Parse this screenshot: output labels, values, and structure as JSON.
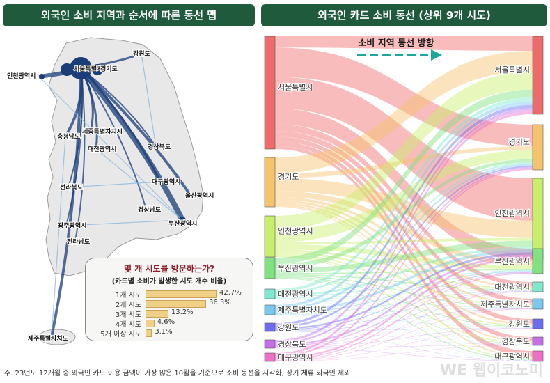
{
  "titles": {
    "left": "외국인 소비 지역과 순서에 따른 동선 맵",
    "right": "외국인 카드 소비 동선 (상위 9개 시도)"
  },
  "map": {
    "regions": [
      {
        "name": "강원도"
      },
      {
        "name": "인천광역시"
      },
      {
        "name": "서울특별시"
      },
      {
        "name": "경기도"
      },
      {
        "name": "세종특별자치시"
      },
      {
        "name": "충청남도"
      },
      {
        "name": "대전광역시"
      },
      {
        "name": "경상북도"
      },
      {
        "name": "전라북도"
      },
      {
        "name": "대구광역시"
      },
      {
        "name": "울산광역시"
      },
      {
        "name": "경상남도"
      },
      {
        "name": "부산광역시"
      },
      {
        "name": "광주광역시"
      },
      {
        "name": "전라남도"
      },
      {
        "name": "제주특별자치도"
      }
    ]
  },
  "inset": {
    "question": "몇 개 시도를 방문하는가?",
    "subtitle": "(카드별 소비가 발생한 시도 개수 비율)",
    "rows": [
      {
        "label": "1개 시도",
        "value": 42.7,
        "text": "42.7%"
      },
      {
        "label": "2개 시도",
        "value": 36.3,
        "text": "36.3%"
      },
      {
        "label": "3개 시도",
        "value": 13.2,
        "text": "13.2%"
      },
      {
        "label": "4개 시도",
        "value": 4.6,
        "text": "4.6%"
      },
      {
        "label": "5개 이상 시도",
        "value": 3.1,
        "text": "3.1%"
      }
    ]
  },
  "chart_data": {
    "type": "sankey",
    "title": "외국인 카드 소비 동선 (상위 9개 시도)",
    "annotation": "소비 지역 동선 방향",
    "nodes_left": [
      {
        "name": "서울특별시",
        "color": "#ef6b6b"
      },
      {
        "name": "경기도",
        "color": "#f6c36d"
      },
      {
        "name": "인천광역시",
        "color": "#c8ef6a"
      },
      {
        "name": "부산광역시",
        "color": "#7ee37e"
      },
      {
        "name": "대전광역시",
        "color": "#7de9cf"
      },
      {
        "name": "제주특별자치도",
        "color": "#78c8f0"
      },
      {
        "name": "강원도",
        "color": "#6b6cf0"
      },
      {
        "name": "경상북도",
        "color": "#c66fe8"
      },
      {
        "name": "대구광역시",
        "color": "#ee6fc6"
      }
    ],
    "nodes_right": [
      {
        "name": "서울특별시",
        "color": "#ef6b6b"
      },
      {
        "name": "경기도",
        "color": "#f6c36d"
      },
      {
        "name": "인천광역시",
        "color": "#c8ef6a"
      },
      {
        "name": "부산광역시",
        "color": "#7ee37e"
      },
      {
        "name": "대전광역시",
        "color": "#7de9cf"
      },
      {
        "name": "제주특별자치도",
        "color": "#78c8f0"
      },
      {
        "name": "강원도",
        "color": "#6b6cf0"
      },
      {
        "name": "경상북도",
        "color": "#c66fe8"
      },
      {
        "name": "대구광역시",
        "color": "#ee6fc6"
      }
    ]
  },
  "footnote": "주. 23년도 12개월 중 외국인 카드 이용 금액이 가장 많은 10월을 기준으로 소비 동선을 시각화, 장기 체류 외국인 제외",
  "watermark": "WE 웹이코노미"
}
